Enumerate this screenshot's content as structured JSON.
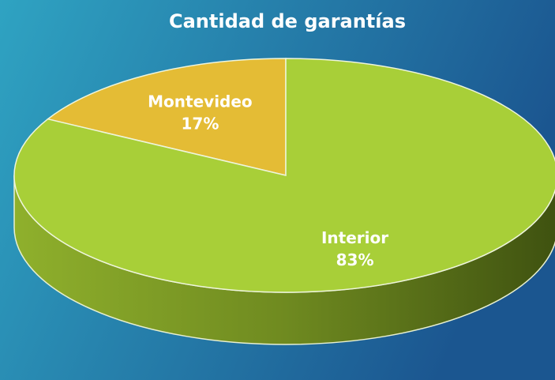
{
  "chart_data": {
    "type": "pie",
    "title": "Cantidad de garantías",
    "categories": [
      "Montevideo",
      "Interior"
    ],
    "values": [
      17,
      83
    ],
    "value_labels": [
      "17%",
      "83%"
    ],
    "colors": [
      "#e4bc35",
      "#a8cf38"
    ]
  }
}
